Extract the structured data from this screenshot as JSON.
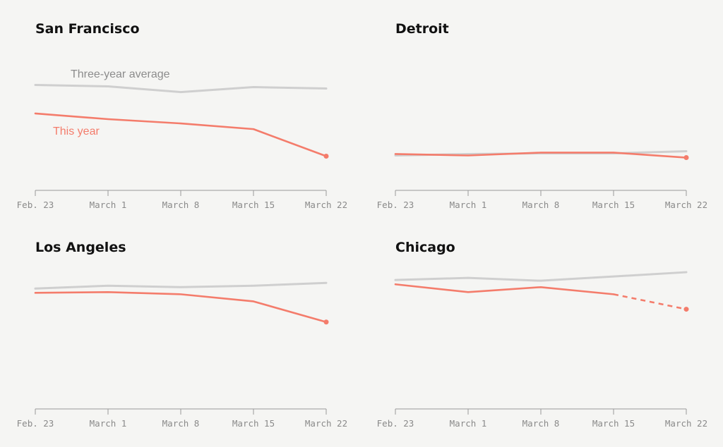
{
  "colors": {
    "average": "#cfcfcf",
    "this_year": "#f47c6b",
    "axis": "#999999",
    "background": "#f5f5f3"
  },
  "chart_data": [
    {
      "type": "line",
      "title": "San Francisco",
      "categories": [
        "Feb. 23",
        "March 1",
        "March 8",
        "March 15",
        "March 22"
      ],
      "series": [
        {
          "name": "Three-year average",
          "key": "average",
          "values": [
            100,
            98,
            90,
            97,
            95
          ]
        },
        {
          "name": "This year",
          "key": "this_year",
          "values": [
            60,
            52,
            46,
            38,
            0
          ]
        }
      ],
      "ylim": [
        -48,
        150
      ],
      "annotations": [
        "Three-year average",
        "This year"
      ]
    },
    {
      "type": "line",
      "title": "Detroit",
      "categories": [
        "Feb. 23",
        "March 1",
        "March 8",
        "March 15",
        "March 22"
      ],
      "series": [
        {
          "name": "Three-year average",
          "key": "average",
          "values": [
            3,
            5,
            6,
            6,
            9
          ]
        },
        {
          "name": "This year",
          "key": "this_year",
          "values": [
            5,
            3,
            7,
            7,
            0
          ]
        }
      ],
      "ylim": [
        -46,
        152
      ]
    },
    {
      "type": "line",
      "title": "Los Angeles",
      "categories": [
        "Feb. 23",
        "March 1",
        "March 8",
        "March 15",
        "March 22"
      ],
      "series": [
        {
          "name": "Three-year average",
          "key": "average",
          "values": [
            47,
            51,
            49,
            51,
            55
          ]
        },
        {
          "name": "This year",
          "key": "this_year",
          "values": [
            41,
            42,
            39,
            29,
            0
          ]
        }
      ],
      "ylim": [
        -122,
        76
      ]
    },
    {
      "type": "line",
      "title": "Chicago",
      "categories": [
        "Feb. 23",
        "March 1",
        "March 8",
        "March 15",
        "March 22"
      ],
      "series": [
        {
          "name": "Three-year average",
          "key": "average",
          "values": [
            41,
            44,
            40,
            46,
            52
          ]
        },
        {
          "name": "This year",
          "key": "this_year",
          "values": [
            35,
            24,
            31,
            21,
            0
          ],
          "dashed_last_segment": true
        }
      ],
      "ylim": [
        -140,
        58
      ]
    }
  ]
}
